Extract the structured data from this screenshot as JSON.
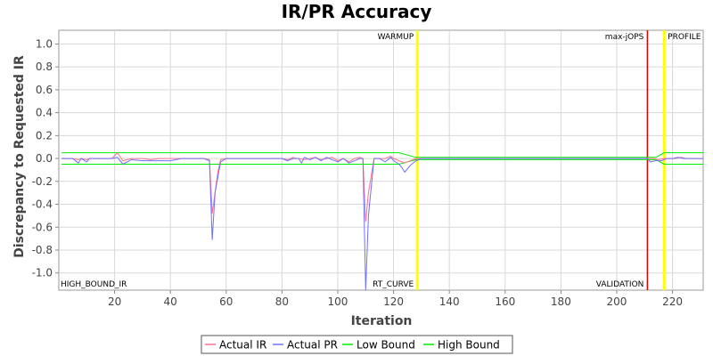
{
  "chart_data": {
    "type": "line",
    "title": "IR/PR Accuracy",
    "xlabel": "Iteration",
    "ylabel": "Discrepancy to Requested IR",
    "xlim": [
      0,
      231
    ],
    "ylim": [
      -1.15,
      1.12
    ],
    "xticks": [
      20,
      40,
      60,
      80,
      100,
      120,
      140,
      160,
      180,
      200,
      220
    ],
    "yticks": [
      -1.0,
      -0.8,
      -0.6,
      -0.4,
      -0.2,
      0.0,
      0.2,
      0.4,
      0.6,
      0.8,
      1.0
    ],
    "ytick_labels": [
      "-1.0",
      "-0.8",
      "-0.6",
      "-0.4",
      "-0.2",
      "0.0",
      "0.2",
      "0.4",
      "0.6",
      "0.8",
      "1.0"
    ],
    "grid": true,
    "legend_position": "bottom",
    "markers": [
      {
        "label": "WARMUP",
        "x": 128.5,
        "color": "#ffff00",
        "label_side": "top-left"
      },
      {
        "label": "RT_CURVE",
        "x": 128.5,
        "color": "#ffff00",
        "label_side": "bottom-left"
      },
      {
        "label": "max-jOPS",
        "x": 211,
        "color": "#dd0000",
        "label_side": "top-left"
      },
      {
        "label": "VALIDATION",
        "x": 211,
        "color": "#dd0000",
        "label_side": "bottom-left"
      },
      {
        "label": "PROFILE",
        "x": 217,
        "color": "#ffff00",
        "label_side": "top-right"
      }
    ],
    "corner_labels": [
      {
        "label": "HIGH_BOUND_IR",
        "position": "bottom-left"
      }
    ],
    "series": [
      {
        "name": "Actual IR",
        "color": "#ff7090",
        "x": [
          1,
          5,
          7,
          8,
          10,
          11,
          13,
          16,
          19,
          21,
          23,
          26,
          30,
          33,
          36,
          40,
          44,
          48,
          52,
          54,
          55,
          57,
          58,
          60,
          65,
          70,
          75,
          80,
          82,
          84,
          85,
          86,
          88,
          90,
          92,
          94,
          96,
          98,
          100,
          102,
          104,
          106,
          108,
          109,
          110,
          111,
          113,
          115,
          117,
          119,
          120,
          122,
          124,
          126,
          128,
          130,
          150,
          180,
          205,
          211,
          213,
          215,
          217,
          219,
          221,
          223,
          225,
          227,
          231
        ],
        "y": [
          0.0,
          0.0,
          -0.01,
          0.0,
          -0.01,
          0.0,
          0.0,
          0.0,
          0.0,
          0.05,
          -0.02,
          0.0,
          0.0,
          -0.01,
          0.0,
          0.0,
          0.0,
          0.0,
          0.0,
          -0.01,
          -0.48,
          -0.12,
          -0.01,
          0.0,
          0.0,
          0.0,
          0.0,
          0.0,
          -0.01,
          0.01,
          0.0,
          0.0,
          -0.01,
          0.0,
          0.01,
          -0.01,
          0.0,
          0.01,
          -0.02,
          0.0,
          -0.03,
          0.0,
          0.01,
          0.0,
          -0.55,
          -0.3,
          0.0,
          0.0,
          0.0,
          0.02,
          0.0,
          -0.02,
          -0.04,
          -0.02,
          0.0,
          0.0,
          0.0,
          0.0,
          0.0,
          0.0,
          0.0,
          -0.01,
          0.0,
          0.0,
          0.0,
          0.01,
          0.0,
          0.0,
          0.0
        ]
      },
      {
        "name": "Actual PR",
        "color": "#7070ff",
        "x": [
          1,
          5,
          7,
          8,
          10,
          11,
          13,
          16,
          19,
          21,
          23,
          26,
          30,
          33,
          36,
          40,
          44,
          48,
          52,
          54,
          55,
          56,
          58,
          60,
          65,
          70,
          75,
          80,
          82,
          84,
          86,
          87,
          88,
          90,
          92,
          94,
          96,
          98,
          100,
          102,
          104,
          106,
          108,
          109,
          110,
          111,
          113,
          115,
          117,
          119,
          120,
          122,
          123,
          124,
          126,
          128,
          130,
          150,
          180,
          205,
          211,
          212,
          214,
          216,
          218,
          220,
          222,
          224,
          226,
          228,
          231
        ],
        "y": [
          0.0,
          0.0,
          -0.04,
          0.0,
          -0.03,
          0.0,
          0.0,
          0.0,
          0.0,
          0.01,
          -0.05,
          -0.01,
          -0.02,
          -0.02,
          -0.02,
          -0.02,
          0.0,
          0.0,
          0.0,
          -0.02,
          -0.71,
          -0.3,
          -0.03,
          0.0,
          0.0,
          0.0,
          0.0,
          0.0,
          -0.02,
          0.0,
          0.0,
          -0.04,
          0.01,
          -0.01,
          0.01,
          -0.02,
          0.01,
          -0.01,
          -0.03,
          0.0,
          -0.04,
          -0.02,
          0.0,
          0.0,
          -1.15,
          -0.5,
          0.0,
          0.0,
          -0.03,
          0.01,
          -0.02,
          -0.05,
          -0.08,
          -0.12,
          -0.06,
          -0.02,
          0.0,
          0.0,
          0.0,
          0.0,
          0.0,
          -0.03,
          -0.02,
          -0.02,
          0.0,
          0.0,
          0.01,
          0.0,
          0.0,
          0.0,
          0.0
        ]
      },
      {
        "name": "Low Bound",
        "color": "#00ee00",
        "x": [
          1,
          122,
          128,
          130,
          211,
          214,
          217,
          231
        ],
        "y": [
          -0.05,
          -0.05,
          -0.01,
          -0.01,
          -0.01,
          -0.01,
          -0.05,
          -0.05
        ]
      },
      {
        "name": "High Bound",
        "color": "#00ee00",
        "x": [
          1,
          122,
          128,
          130,
          211,
          214,
          217,
          231
        ],
        "y": [
          0.05,
          0.05,
          0.01,
          0.01,
          0.01,
          0.01,
          0.05,
          0.05
        ]
      }
    ]
  }
}
